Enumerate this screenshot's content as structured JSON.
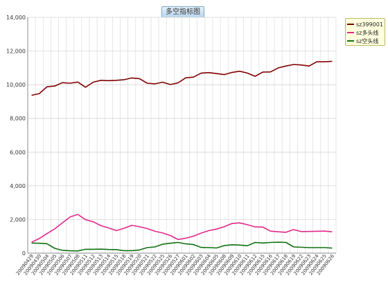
{
  "chart_data": {
    "type": "line",
    "title": "多空指标图",
    "xlabel": "",
    "ylabel": "",
    "ylim": [
      0,
      14000
    ],
    "yticks": [
      0,
      2000,
      4000,
      6000,
      8000,
      10000,
      12000,
      14000
    ],
    "ytick_labels": [
      "0",
      "2,000",
      "4,000",
      "6,000",
      "8,000",
      "10,000",
      "12,000",
      "14,000"
    ],
    "grid": true,
    "legend_position": "top-right",
    "categories": [
      "20090429",
      "20090430",
      "20090504",
      "20090505",
      "20090506",
      "20090507",
      "20090508",
      "20090511",
      "20090512",
      "20090513",
      "20090514",
      "20090515",
      "20090518",
      "20090519",
      "20090520",
      "20090521",
      "20090522",
      "20090525",
      "20090526",
      "20090527",
      "20090601",
      "20090602",
      "20090603",
      "20090604",
      "20090605",
      "20090608",
      "20090609",
      "20090610",
      "20090611",
      "20090612",
      "20090615",
      "20090616",
      "20090617",
      "20090618",
      "20090619",
      "20090622",
      "20090623",
      "20090624",
      "20090625",
      "20090626"
    ],
    "series": [
      {
        "name": "sz399001",
        "color": "#800000",
        "values": [
          9370,
          9470,
          9880,
          9920,
          10120,
          10090,
          10160,
          9850,
          10150,
          10260,
          10240,
          10260,
          10300,
          10400,
          10360,
          10090,
          10050,
          10150,
          10010,
          10110,
          10410,
          10450,
          10690,
          10720,
          10660,
          10600,
          10730,
          10800,
          10690,
          10500,
          10750,
          10760,
          11000,
          11110,
          11200,
          11170,
          11110,
          11360,
          11360,
          11390
        ]
      },
      {
        "name": "sz多头线",
        "color": "#e0288a",
        "values": [
          650,
          870,
          1160,
          1440,
          1800,
          2150,
          2300,
          1990,
          1860,
          1630,
          1500,
          1340,
          1480,
          1650,
          1570,
          1460,
          1300,
          1200,
          1050,
          810,
          890,
          1010,
          1190,
          1340,
          1430,
          1570,
          1760,
          1800,
          1690,
          1560,
          1550,
          1310,
          1270,
          1240,
          1400,
          1280,
          1290,
          1300,
          1310,
          1270
        ]
      },
      {
        "name": "sz空头线",
        "color": "#107010",
        "values": [
          600,
          590,
          560,
          290,
          170,
          140,
          130,
          230,
          230,
          240,
          220,
          210,
          150,
          150,
          190,
          330,
          370,
          530,
          590,
          640,
          550,
          510,
          340,
          330,
          310,
          450,
          500,
          480,
          440,
          640,
          600,
          640,
          650,
          640,
          370,
          350,
          330,
          330,
          330,
          300
        ]
      }
    ]
  }
}
